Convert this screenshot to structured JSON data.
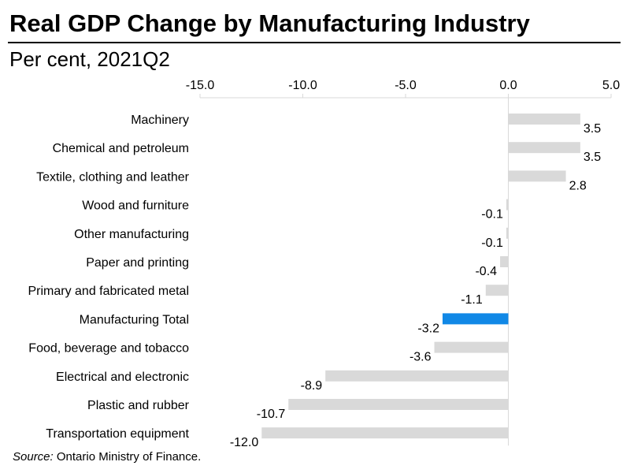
{
  "header": {
    "title": "Real GDP Change by Manufacturing Industry",
    "subtitle": "Per cent, 2021Q2"
  },
  "footer": {
    "source_label": "Source:",
    "source_text": "Ontario Ministry of Finance."
  },
  "colors": {
    "bar": "#d9d9d9",
    "highlight": "#1188e6",
    "axis": "#d9d9d9",
    "text": "#000000"
  },
  "chart_data": {
    "type": "bar",
    "orientation": "horizontal",
    "title": "Real GDP Change by Manufacturing Industry",
    "subtitle": "Per cent, 2021Q2",
    "xlabel": "",
    "ylabel": "",
    "xlim": [
      -15.0,
      5.0
    ],
    "xticks": [
      -15.0,
      -10.0,
      -5.0,
      0.0,
      5.0
    ],
    "tick_labels": [
      "-15.0",
      "-10.0",
      "-5.0",
      "0.0",
      "5.0"
    ],
    "axis_position": "top",
    "grid": false,
    "legend": "none",
    "categories": [
      "Machinery",
      "Chemical and petroleum",
      "Textile, clothing and leather",
      "Wood and furniture",
      "Other manufacturing",
      "Paper and printing",
      "Primary and fabricated metal",
      "Manufacturing Total",
      "Food, beverage and tobacco",
      "Electrical and electronic",
      "Plastic and rubber",
      "Transportation equipment"
    ],
    "values": [
      3.5,
      3.5,
      2.8,
      -0.1,
      -0.1,
      -0.4,
      -1.1,
      -3.2,
      -3.6,
      -8.9,
      -10.7,
      -12.0
    ],
    "value_labels": [
      "3.5",
      "3.5",
      "2.8",
      "-0.1",
      "-0.1",
      "-0.4",
      "-1.1",
      "-3.2",
      "-3.6",
      "-8.9",
      "-10.7",
      "-12.0"
    ],
    "highlight": "Manufacturing Total"
  }
}
